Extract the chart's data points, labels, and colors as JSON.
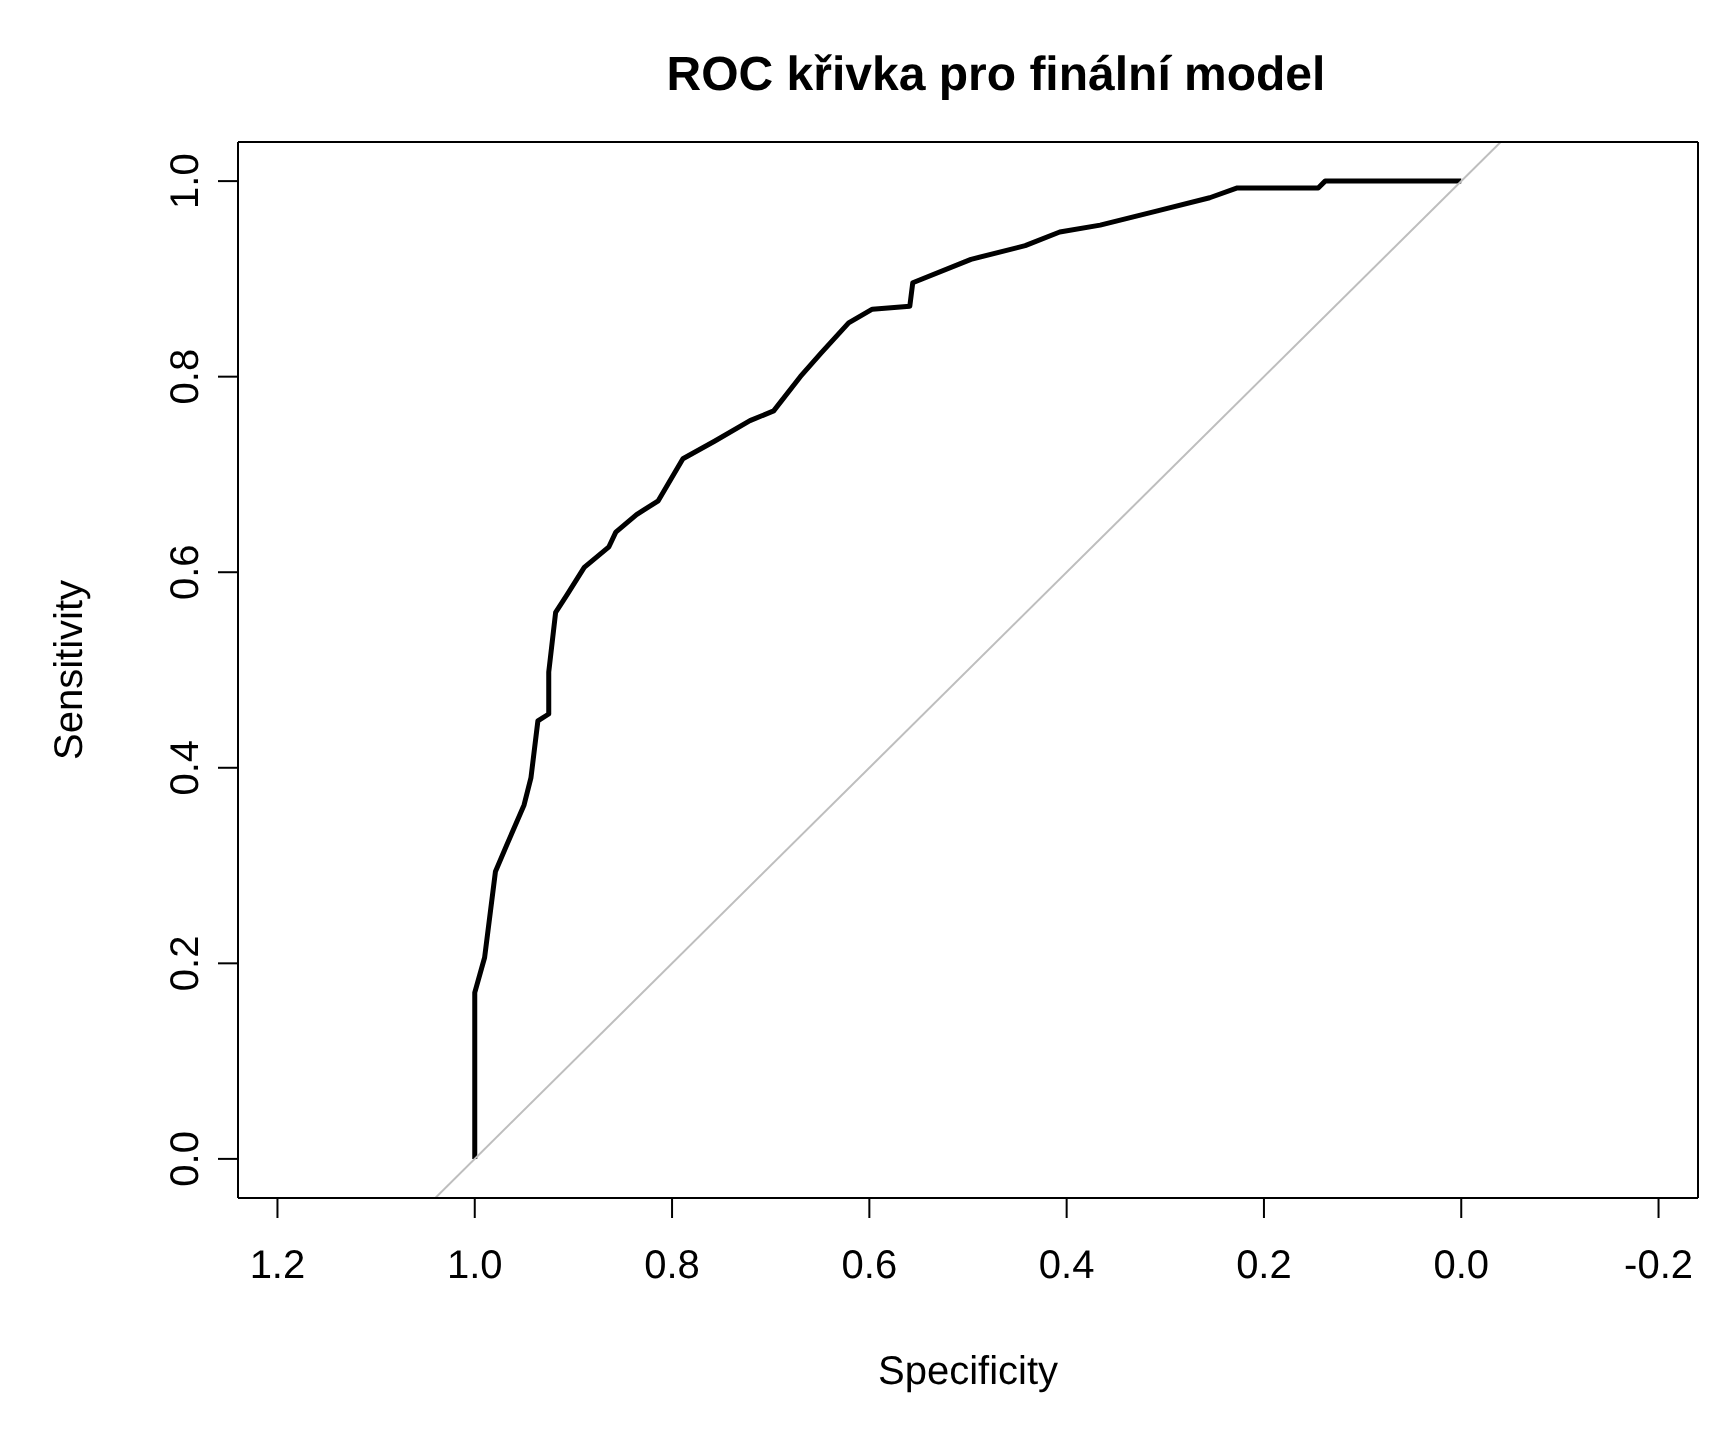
{
  "chart_data": {
    "type": "line",
    "title": "ROC křivka pro finální model",
    "xlabel": "Specificity",
    "ylabel": "Sensitivity",
    "xlim": [
      1.24,
      -0.24
    ],
    "xticks": [
      1.2,
      {
        "value": 1,
        "label": "1.0"
      },
      0.8,
      0.6,
      0.4,
      0.2,
      {
        "value": 0,
        "label": "0.0"
      },
      -0.2
    ],
    "ylim": [
      -0.04,
      1.04
    ],
    "yticks": [
      {
        "value": 0,
        "label": "0.0"
      },
      0.2,
      0.4,
      0.6,
      0.8,
      {
        "value": 1,
        "label": "1.0"
      }
    ],
    "marker": "none",
    "line_style": "solid",
    "series": [
      {
        "color": "#000000",
        "x": [
          1.0,
          1.0,
          0.99,
          0.979,
          0.968,
          0.95,
          0.943,
          0.936,
          0.925,
          0.925,
          0.918,
          0.907,
          0.889,
          0.864,
          0.857,
          0.836,
          0.814,
          0.789,
          0.757,
          0.721,
          0.697,
          0.67,
          0.649,
          0.621,
          0.597,
          0.559,
          0.556,
          0.497,
          0.442,
          0.407,
          0.366,
          0.31,
          0.255,
          0.227,
          0.145,
          0.138,
          0.0
        ],
        "values": [
          0.0,
          0.17,
          0.206,
          0.294,
          0.32,
          0.362,
          0.39,
          0.448,
          0.455,
          0.498,
          0.559,
          0.576,
          0.605,
          0.626,
          0.641,
          0.659,
          0.673,
          0.716,
          0.734,
          0.755,
          0.765,
          0.8,
          0.824,
          0.855,
          0.869,
          0.872,
          0.896,
          0.92,
          0.934,
          0.948,
          0.955,
          0.969,
          0.983,
          0.993,
          0.993,
          1.0,
          1.0
        ]
      },
      {
        "color": "#bebebe",
        "x": [
          1.04,
          -0.04
        ],
        "values": [
          -0.04,
          1.04
        ]
      }
    ]
  }
}
